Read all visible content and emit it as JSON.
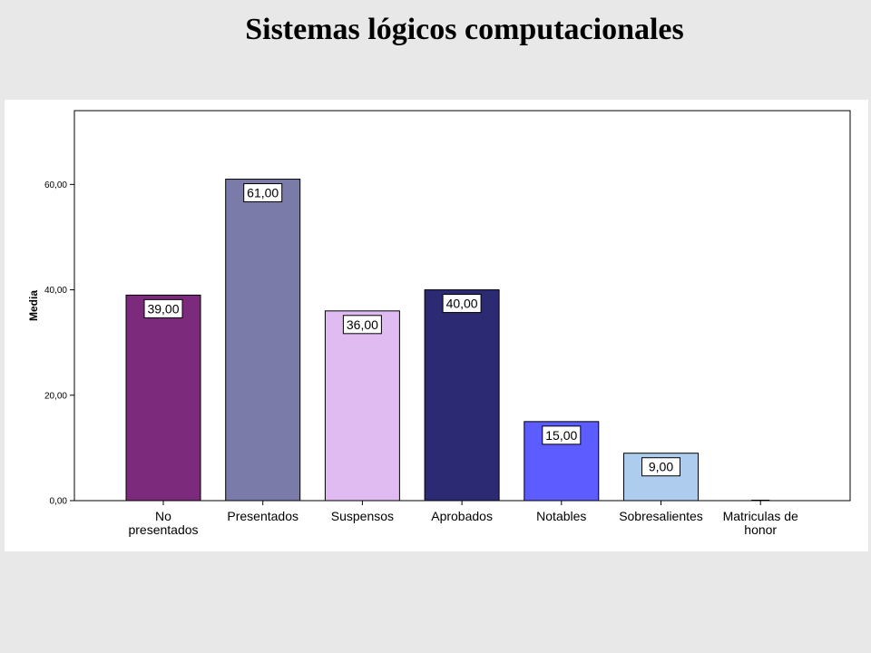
{
  "chart_data": {
    "type": "bar",
    "title": "Sistemas lógicos computacionales",
    "ylabel": "Media",
    "xlabel": "",
    "ylim": [
      0,
      74
    ],
    "yticks": [
      0,
      20,
      40,
      60
    ],
    "ytick_labels": [
      "0,00",
      "20,00",
      "40,00",
      "60,00"
    ],
    "grid": false,
    "legend": "none",
    "categories": [
      [
        "No",
        "presentados"
      ],
      [
        "Presentados"
      ],
      [
        "Suspensos"
      ],
      [
        "Aprobados"
      ],
      [
        "Notables"
      ],
      [
        "Sobresalientes"
      ],
      [
        "Matriculas de",
        "honor"
      ]
    ],
    "values": [
      39,
      61,
      36,
      40,
      15,
      9,
      0
    ],
    "data_labels": [
      "39,00",
      "61,00",
      "36,00",
      "40,00",
      "15,00",
      "9,00",
      ""
    ],
    "colors": [
      "#7b2a7c",
      "#7b7ba9",
      "#dfbbf2",
      "#2b2a73",
      "#5c5cff",
      "#aecdee",
      "#aecdee"
    ]
  }
}
